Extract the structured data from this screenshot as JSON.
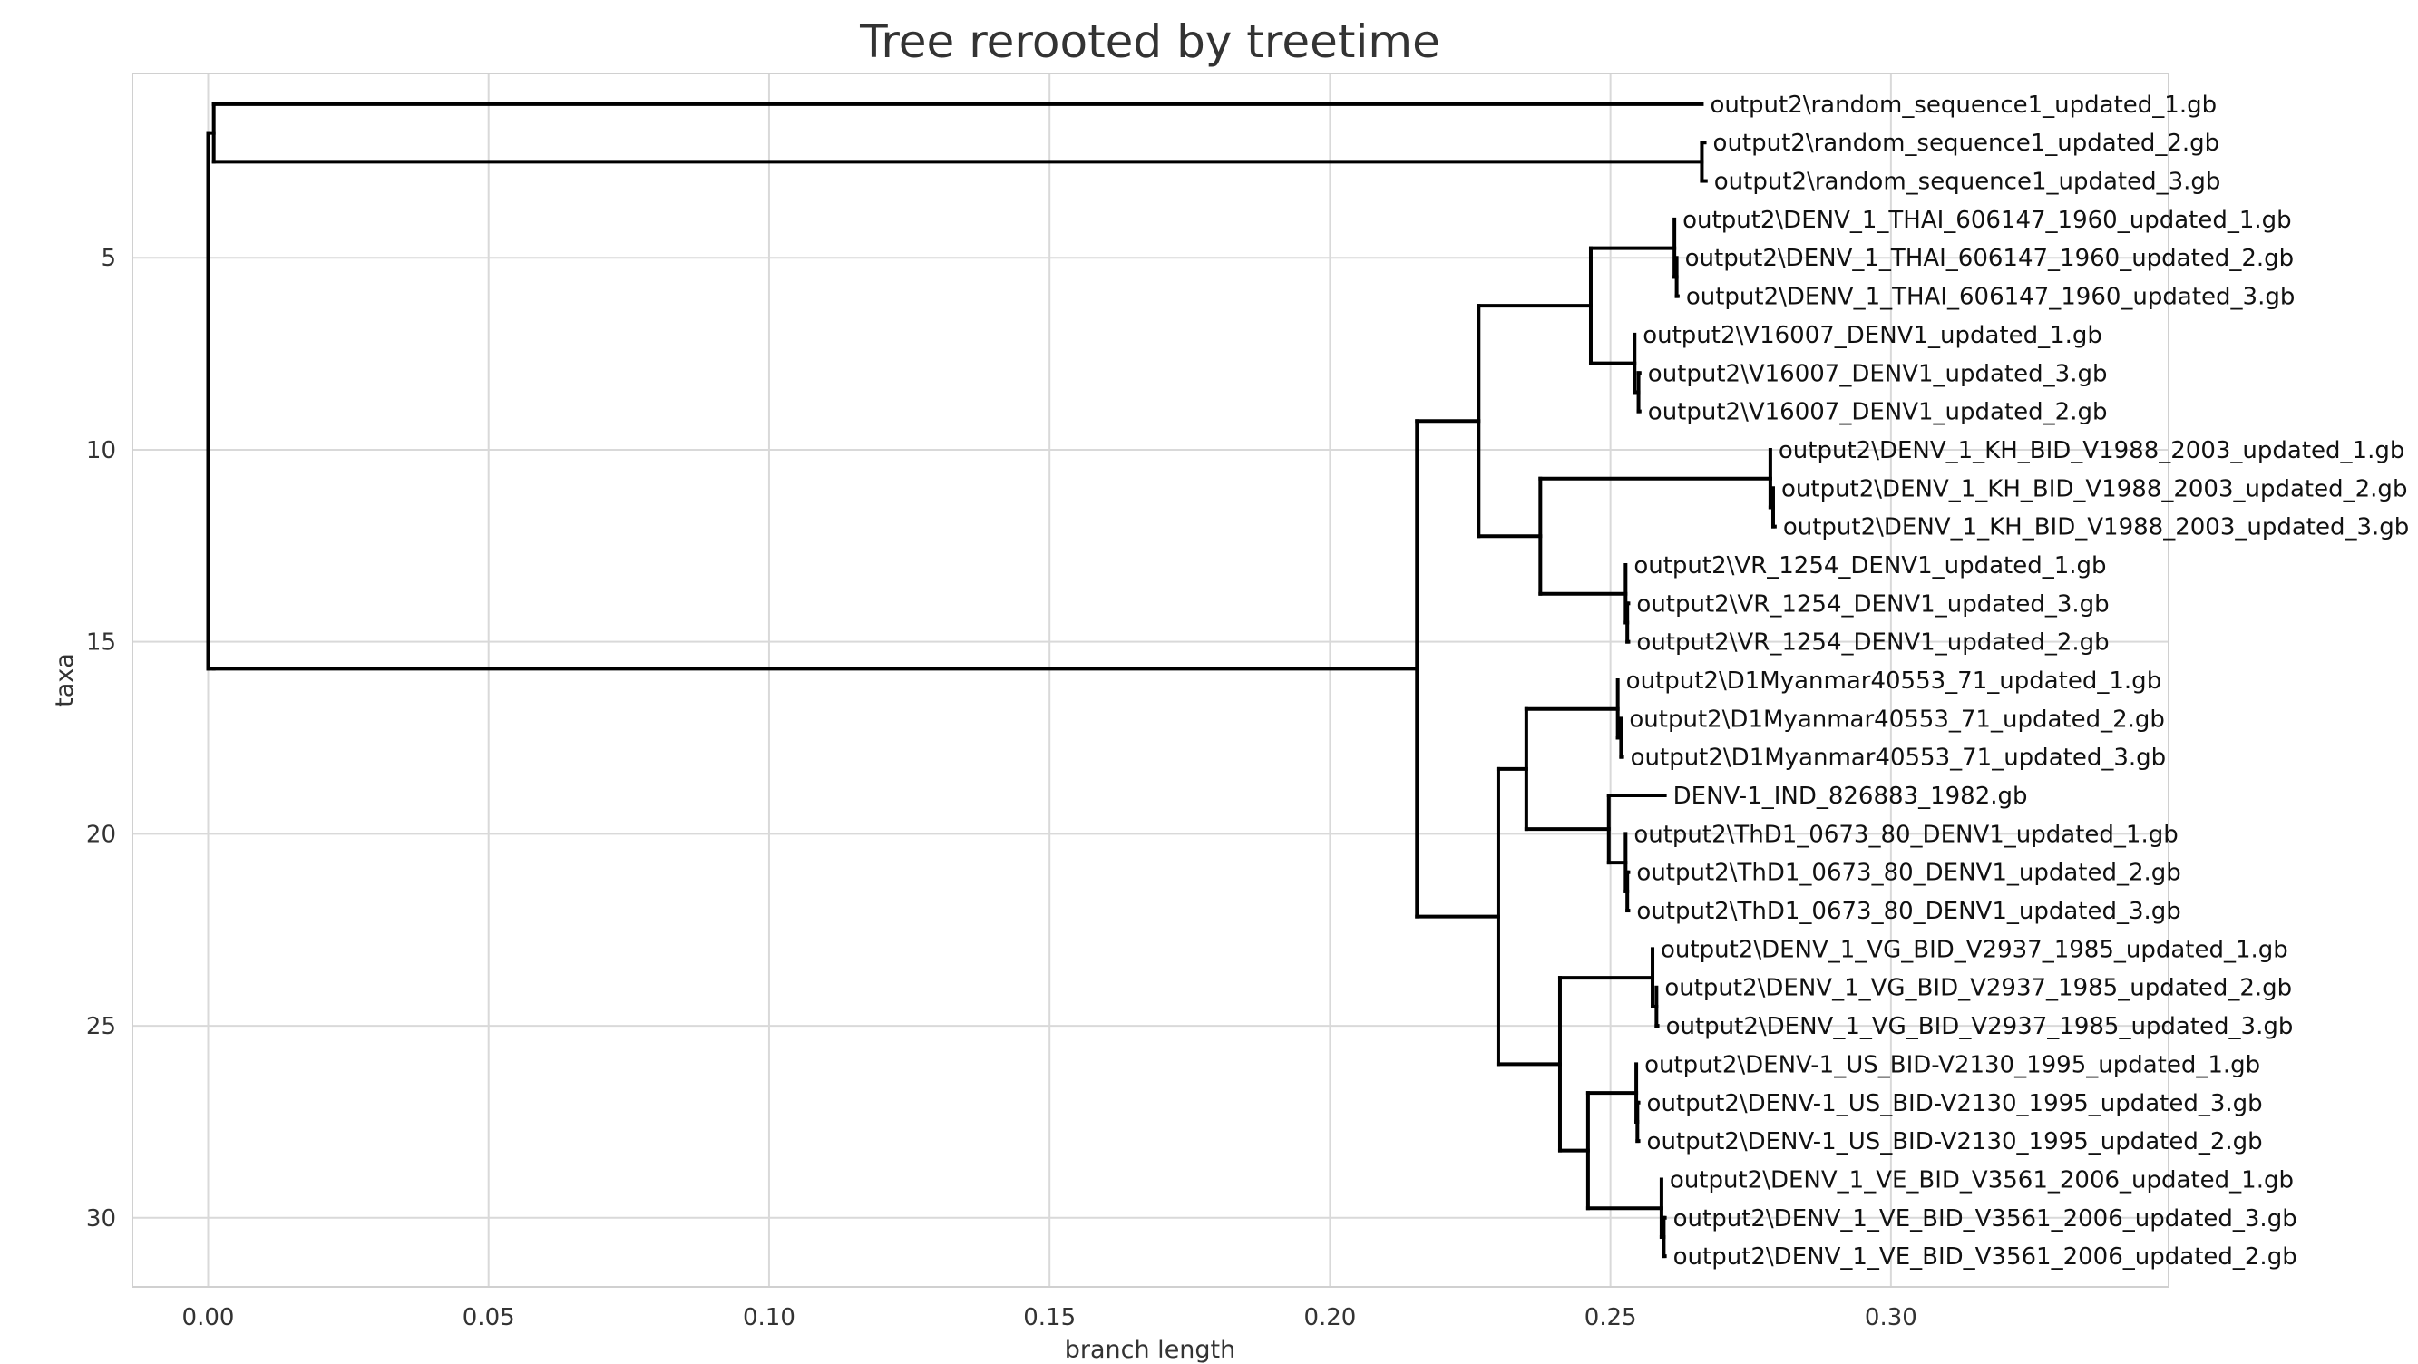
{
  "chart_data": {
    "type": "phylogenetic-tree",
    "title": "Tree rerooted by treetime",
    "xlabel": "branch length",
    "ylabel": "taxa",
    "xlim": [
      -0.0135,
      0.3495
    ],
    "ylim": [
      31.8,
      0.2
    ],
    "xticks": [
      0.0,
      0.05,
      0.1,
      0.15,
      0.2,
      0.25,
      0.3
    ],
    "xtick_labels": [
      "0.00",
      "0.05",
      "0.10",
      "0.15",
      "0.20",
      "0.25",
      "0.30"
    ],
    "yticks": [
      5,
      10,
      15,
      20,
      25,
      30
    ],
    "ytick_labels": [
      "5",
      "10",
      "15",
      "20",
      "25",
      "30"
    ],
    "grid": true,
    "taxa": [
      {
        "y": 1,
        "x": 0.2663,
        "label": "output2\\random_sequence1_updated_1.gb"
      },
      {
        "y": 2,
        "x": 0.2668,
        "label": "output2\\random_sequence1_updated_2.gb"
      },
      {
        "y": 3,
        "x": 0.267,
        "label": "output2\\random_sequence1_updated_3.gb"
      },
      {
        "y": 4,
        "x": 0.2614,
        "label": "output2\\DENV_1_THAI_606147_1960_updated_1.gb"
      },
      {
        "y": 5,
        "x": 0.2618,
        "label": "output2\\DENV_1_THAI_606147_1960_updated_2.gb"
      },
      {
        "y": 6,
        "x": 0.262,
        "label": "output2\\DENV_1_THAI_606147_1960_updated_3.gb"
      },
      {
        "y": 7,
        "x": 0.2543,
        "label": "output2\\V16007_DENV1_updated_1.gb"
      },
      {
        "y": 8,
        "x": 0.2552,
        "label": "output2\\V16007_DENV1_updated_3.gb"
      },
      {
        "y": 9,
        "x": 0.2552,
        "label": "output2\\V16007_DENV1_updated_2.gb"
      },
      {
        "y": 10,
        "x": 0.2785,
        "label": "output2\\DENV_1_KH_BID_V1988_2003_updated_1.gb"
      },
      {
        "y": 11,
        "x": 0.279,
        "label": "output2\\DENV_1_KH_BID_V1988_2003_updated_2.gb"
      },
      {
        "y": 12,
        "x": 0.2793,
        "label": "output2\\DENV_1_KH_BID_V1988_2003_updated_3.gb"
      },
      {
        "y": 13,
        "x": 0.2527,
        "label": "output2\\VR_1254_DENV1_updated_1.gb"
      },
      {
        "y": 14,
        "x": 0.2532,
        "label": "output2\\VR_1254_DENV1_updated_3.gb"
      },
      {
        "y": 15,
        "x": 0.2532,
        "label": "output2\\VR_1254_DENV1_updated_2.gb"
      },
      {
        "y": 16,
        "x": 0.2513,
        "label": "output2\\D1Myanmar40553_71_updated_1.gb"
      },
      {
        "y": 17,
        "x": 0.2519,
        "label": "output2\\D1Myanmar40553_71_updated_2.gb"
      },
      {
        "y": 18,
        "x": 0.2521,
        "label": "output2\\D1Myanmar40553_71_updated_3.gb"
      },
      {
        "y": 19,
        "x": 0.2597,
        "label": "DENV-1_IND_826883_1982.gb"
      },
      {
        "y": 20,
        "x": 0.2527,
        "label": "output2\\ThD1_0673_80_DENV1_updated_1.gb"
      },
      {
        "y": 21,
        "x": 0.2532,
        "label": "output2\\ThD1_0673_80_DENV1_updated_2.gb"
      },
      {
        "y": 22,
        "x": 0.2532,
        "label": "output2\\ThD1_0673_80_DENV1_updated_3.gb"
      },
      {
        "y": 23,
        "x": 0.2575,
        "label": "output2\\DENV_1_VG_BID_V2937_1985_updated_1.gb"
      },
      {
        "y": 24,
        "x": 0.2582,
        "label": "output2\\DENV_1_VG_BID_V2937_1985_updated_2.gb"
      },
      {
        "y": 25,
        "x": 0.2584,
        "label": "output2\\DENV_1_VG_BID_V2937_1985_updated_3.gb"
      },
      {
        "y": 26,
        "x": 0.2546,
        "label": "output2\\DENV-1_US_BID-V2130_1995_updated_1.gb"
      },
      {
        "y": 27,
        "x": 0.255,
        "label": "output2\\DENV-1_US_BID-V2130_1995_updated_3.gb"
      },
      {
        "y": 28,
        "x": 0.255,
        "label": "output2\\DENV-1_US_BID-V2130_1995_updated_2.gb"
      },
      {
        "y": 29,
        "x": 0.2591,
        "label": "output2\\DENV_1_VE_BID_V3561_2006_updated_1.gb"
      },
      {
        "y": 30,
        "x": 0.2597,
        "label": "output2\\DENV_1_VE_BID_V3561_2006_updated_3.gb"
      },
      {
        "y": 31,
        "x": 0.2597,
        "label": "output2\\DENV_1_VE_BID_V3561_2006_updated_2.gb"
      }
    ],
    "nodes": [
      {
        "id": "root",
        "x": 0.0,
        "parent": null
      },
      {
        "id": "n_rand",
        "x": 0.001,
        "parent": "root"
      },
      {
        "id": "n_rand_a",
        "x": 0.2663,
        "parent": "n_rand"
      },
      {
        "id": "n_main",
        "x": 0.001,
        "parent": "root"
      },
      {
        "id": "n_top",
        "x": 0.2155,
        "parent": "n_main"
      },
      {
        "id": "n_a",
        "x": 0.2265,
        "parent": "n_top"
      },
      {
        "id": "n_a1",
        "x": 0.2465,
        "parent": "n_a"
      },
      {
        "id": "n_thai",
        "x": 0.2614,
        "parent": "n_a1"
      },
      {
        "id": "n_thai_a",
        "x": 0.2618,
        "parent": "n_thai"
      },
      {
        "id": "n_v16",
        "x": 0.2543,
        "parent": "n_a1"
      },
      {
        "id": "n_v16_a",
        "x": 0.255,
        "parent": "n_v16"
      },
      {
        "id": "n_a2",
        "x": 0.2375,
        "parent": "n_a"
      },
      {
        "id": "n_kh",
        "x": 0.2785,
        "parent": "n_a2"
      },
      {
        "id": "n_kh_a",
        "x": 0.279,
        "parent": "n_kh"
      },
      {
        "id": "n_vr",
        "x": 0.2527,
        "parent": "n_a2"
      },
      {
        "id": "n_vr_a",
        "x": 0.253,
        "parent": "n_vr"
      },
      {
        "id": "n_b",
        "x": 0.23,
        "parent": "n_top"
      },
      {
        "id": "n_b1",
        "x": 0.235,
        "parent": "n_b"
      },
      {
        "id": "n_my",
        "x": 0.2513,
        "parent": "n_b1"
      },
      {
        "id": "n_my_a",
        "x": 0.2519,
        "parent": "n_my"
      },
      {
        "id": "n_b1b",
        "x": 0.2497,
        "parent": "n_b1"
      },
      {
        "id": "n_th",
        "x": 0.2527,
        "parent": "n_b1b"
      },
      {
        "id": "n_th_a",
        "x": 0.253,
        "parent": "n_th"
      },
      {
        "id": "n_b2",
        "x": 0.241,
        "parent": "n_b"
      },
      {
        "id": "n_vg",
        "x": 0.2575,
        "parent": "n_b2"
      },
      {
        "id": "n_vg_a",
        "x": 0.2582,
        "parent": "n_vg"
      },
      {
        "id": "n_b2b",
        "x": 0.246,
        "parent": "n_b2"
      },
      {
        "id": "n_us",
        "x": 0.2546,
        "parent": "n_b2b"
      },
      {
        "id": "n_us_a",
        "x": 0.2548,
        "parent": "n_us"
      },
      {
        "id": "n_ve",
        "x": 0.2591,
        "parent": "n_b2b"
      },
      {
        "id": "n_ve_a",
        "x": 0.2595,
        "parent": "n_ve"
      }
    ],
    "tip_parents": [
      "n_rand",
      "n_rand_a",
      "n_rand_a",
      "n_thai",
      "n_thai_a",
      "n_thai_a",
      "n_v16",
      "n_v16_a",
      "n_v16_a",
      "n_kh",
      "n_kh_a",
      "n_kh_a",
      "n_vr",
      "n_vr_a",
      "n_vr_a",
      "n_my",
      "n_my_a",
      "n_my_a",
      "n_b1b",
      "n_th",
      "n_th_a",
      "n_th_a",
      "n_vg",
      "n_vg_a",
      "n_vg_a",
      "n_us",
      "n_us_a",
      "n_us_a",
      "n_ve",
      "n_ve_a",
      "n_ve_a"
    ]
  }
}
